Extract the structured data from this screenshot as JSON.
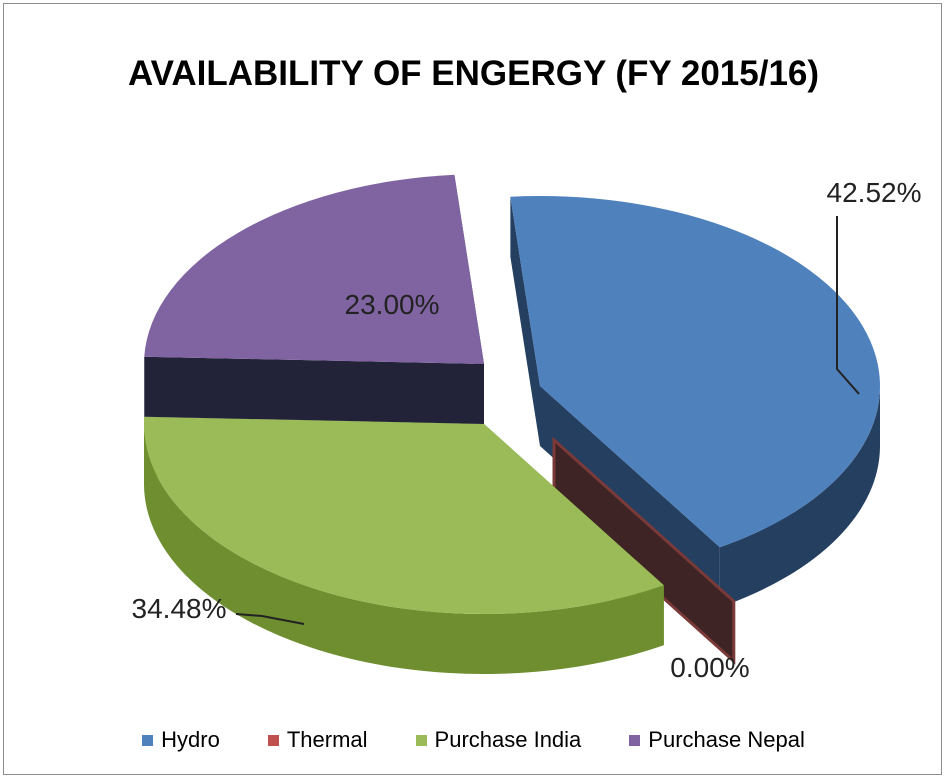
{
  "chart_data": {
    "type": "pie",
    "title": "AVAILABILITY OF ENGERGY (FY  2015/16)",
    "three_d": true,
    "exploded": true,
    "legend_position": "bottom",
    "slices": [
      {
        "name": "Hydro",
        "value": 42.52,
        "label": "42.52%",
        "color": "#4f81bd",
        "side_color": "#243f60"
      },
      {
        "name": "Thermal",
        "value": 0.0,
        "label": "0.00%",
        "color": "#c0504d",
        "side_color": "#3e2424"
      },
      {
        "name": "Purchase India",
        "value": 34.48,
        "label": "34.48%",
        "color": "#9bbb59",
        "side_color": "#6e8e30"
      },
      {
        "name": "Purchase Nepal",
        "value": 23.0,
        "label": "23.00%",
        "color": "#8064a2",
        "side_color": "#222238"
      }
    ]
  }
}
